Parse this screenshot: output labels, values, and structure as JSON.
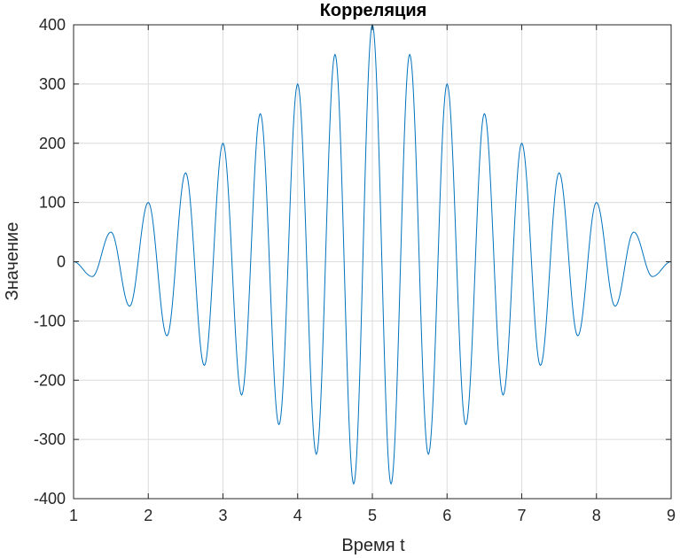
{
  "chart_data": {
    "type": "line",
    "title": "Корреляция",
    "xlabel": "Время t",
    "ylabel": "Значение",
    "xlim": [
      1,
      9
    ],
    "ylim": [
      -400,
      400
    ],
    "xticks": [
      1,
      2,
      3,
      4,
      5,
      6,
      7,
      8,
      9
    ],
    "yticks": [
      400,
      300,
      200,
      100,
      0,
      -100,
      -200,
      -300,
      -400
    ],
    "grid": true,
    "line_color": "#0072bd",
    "series": [
      {
        "x": [
          1.0,
          1.25,
          1.5,
          1.75,
          2.0,
          2.25,
          2.5,
          2.75,
          3.0,
          3.25,
          3.5,
          3.75,
          4.0,
          4.25,
          4.5,
          4.75,
          5.0,
          5.25,
          5.5,
          5.75,
          6.0,
          6.25,
          6.5,
          6.75,
          7.0,
          7.25,
          7.5,
          7.75,
          8.0,
          8.25,
          8.5,
          8.75,
          9.0
        ],
        "y": [
          0,
          -25,
          50,
          -75,
          100,
          -125,
          150,
          -175,
          200,
          -225,
          250,
          -275,
          300,
          -325,
          350,
          -375,
          400,
          -375,
          350,
          -325,
          300,
          -275,
          250,
          -225,
          200,
          -175,
          150,
          -125,
          100,
          -75,
          50,
          -25,
          0
        ]
      }
    ]
  }
}
